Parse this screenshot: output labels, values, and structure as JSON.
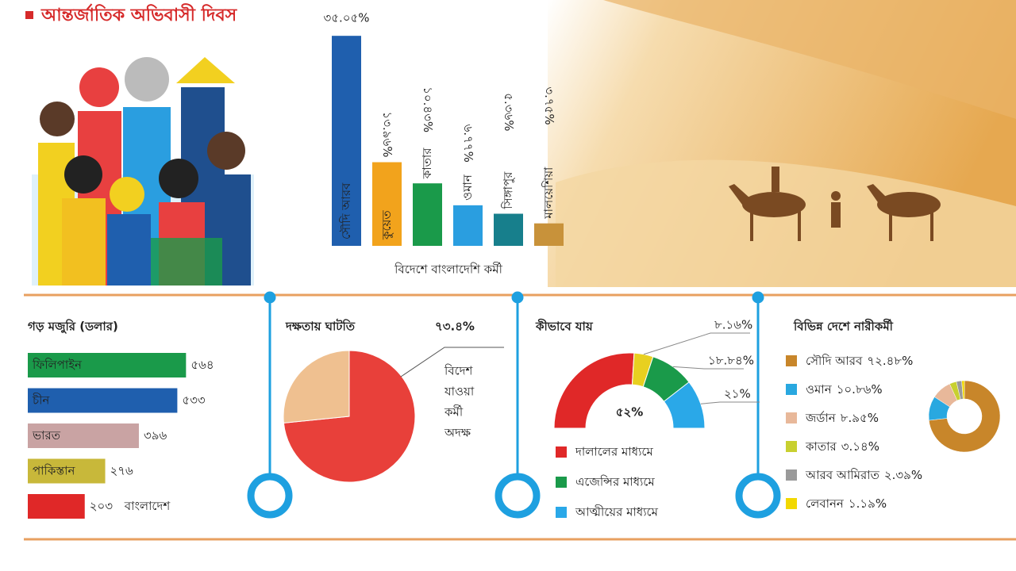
{
  "title": "আন্তর্জাতিক অভিবাসী দিবস",
  "chart_data": [
    {
      "type": "column",
      "caption": "বিদেশে বাংলাদেশি কর্মী",
      "categories": [
        "সৌদি আরব",
        "কুয়েত",
        "কাতার",
        "ওমান",
        "সিঙ্গাপুর",
        "মালয়েশিয়া"
      ],
      "values": [
        35.05,
        13.96,
        10.43,
        6.77,
        5.36,
        3.75
      ],
      "value_labels": [
        "৩৫.০৫%",
        "১৩.৯৬%",
        "১০.৪৩%",
        "৬.৭৭%",
        "৫.৩৬%",
        "৩.৭৫%"
      ],
      "colors": [
        "#1f5fae",
        "#f2a31c",
        "#1a9a4a",
        "#2a9ee0",
        "#177f8c",
        "#c8923a"
      ],
      "ylim": [
        0,
        36
      ]
    },
    {
      "type": "bar",
      "title": "গড় মজুরি (ডলার)",
      "categories": [
        "ফিলিপাইন",
        "চীন",
        "ভারত",
        "পাকিস্তান",
        "বাংলাদেশ"
      ],
      "values": [
        564,
        533,
        396,
        276,
        203
      ],
      "value_labels": [
        "৫৬৪",
        "৫৩৩",
        "৩৯৬",
        "২৭৬",
        "২০৩"
      ],
      "colors": [
        "#1a9a4a",
        "#1f5fae",
        "#c9a3a3",
        "#c8b83a",
        "#e02828"
      ],
      "xlim": [
        0,
        580
      ]
    },
    {
      "type": "pie",
      "title": "দক্ষতায় ঘাটতি",
      "values": [
        73.4,
        26.6
      ],
      "value_labels": [
        "৭৩.৪%",
        null
      ],
      "colors": [
        "#e8403a",
        "#efc090"
      ],
      "annotation": [
        "বিদেশ",
        "যাওয়া",
        "কর্মী",
        "অদক্ষ"
      ]
    },
    {
      "type": "gauge",
      "title": "কীভাবে যায়",
      "categories": [
        "দালালের মাধ্যমে",
        null,
        "এজেন্সির মাধ্যমে",
        "আত্মীয়ের মাধ্যমে"
      ],
      "values": [
        52,
        8.16,
        18.84,
        21
      ],
      "value_labels": [
        "৫২%",
        "৮.১৬%",
        "১৮.৮৪%",
        "২১%"
      ],
      "colors": [
        "#e02828",
        "#e8d020",
        "#1a9a4a",
        "#2aa8e8"
      ]
    },
    {
      "type": "donut",
      "title": "বিভিন্ন দেশে নারীকর্মী",
      "categories": [
        "সৌদি আরব",
        "ওমান",
        "জর্ডান",
        "কাতার",
        "আরব আমিরাত",
        "লেবানন"
      ],
      "values": [
        72.48,
        10.86,
        8.95,
        3.14,
        2.39,
        1.19
      ],
      "value_labels": [
        "৭২.৪৮%",
        "১০.৮৬%",
        "৮.৯৫%",
        "৩.১৪%",
        "২.৩৯%",
        "১.১৯%"
      ],
      "colors": [
        "#c8862a",
        "#29a8e0",
        "#e8b89a",
        "#c8d030",
        "#9a9a9a",
        "#f2d800"
      ]
    }
  ]
}
